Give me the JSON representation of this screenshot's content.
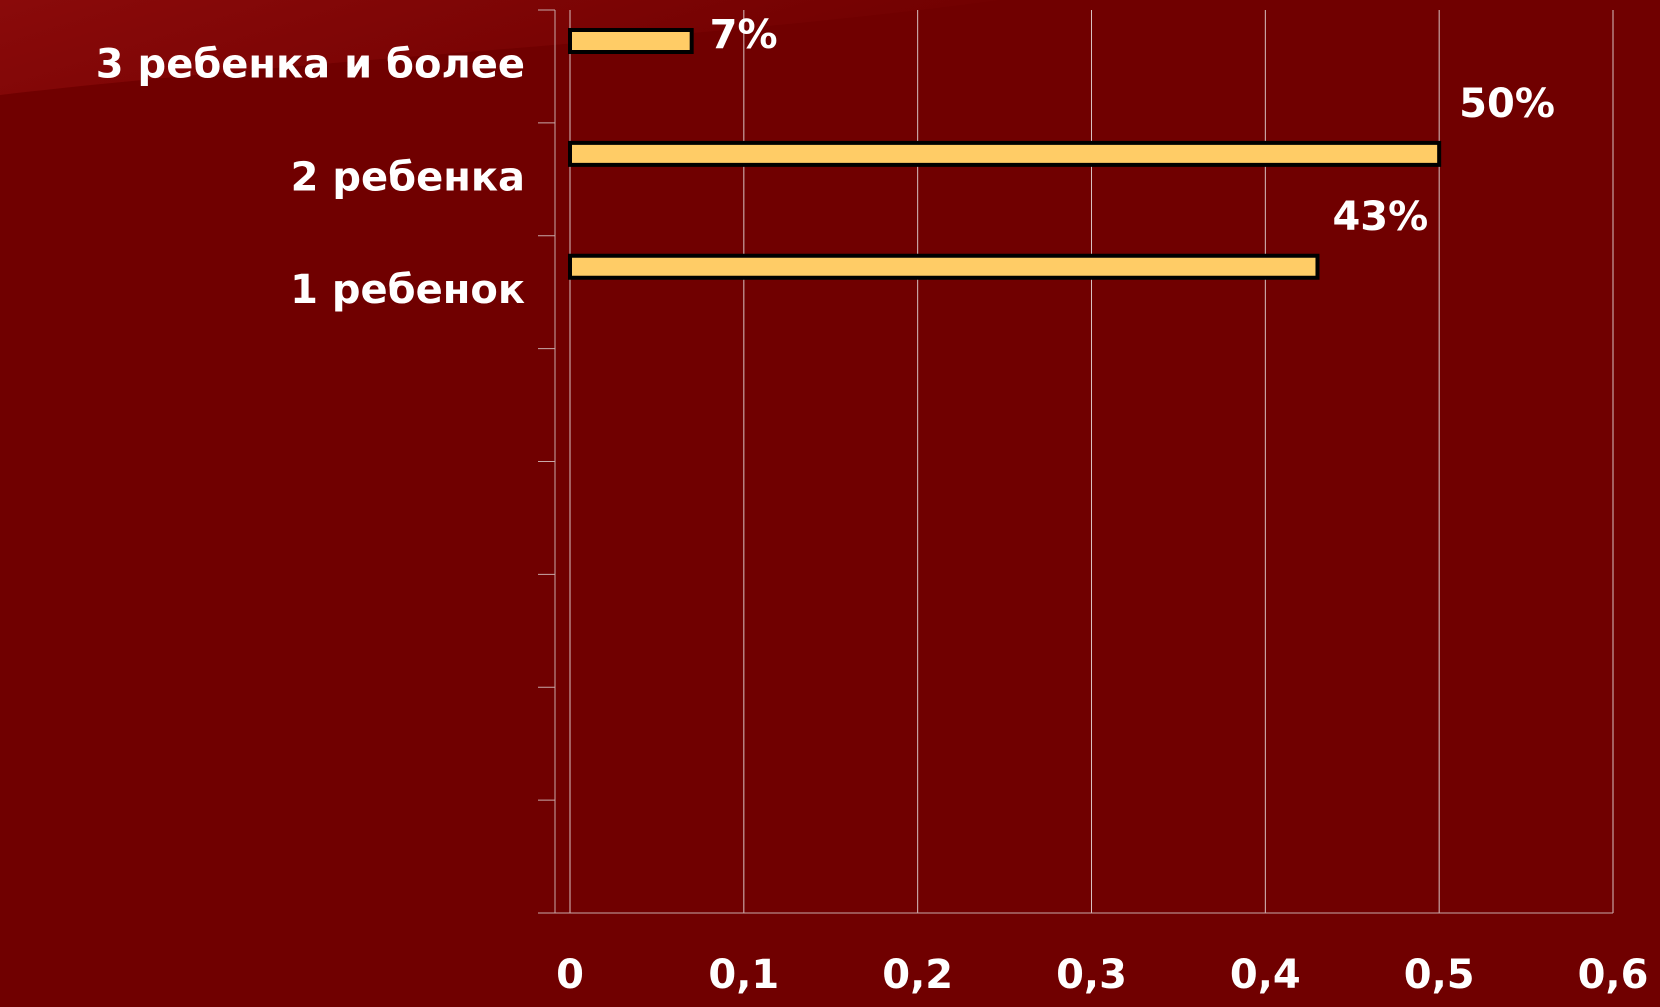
{
  "chart_data": {
    "type": "barh",
    "categories": [
      "3 ребенка и более",
      "2 ребенка",
      "1 ребенок",
      null,
      null,
      null,
      null,
      null
    ],
    "values": [
      0.07,
      0.5,
      0.43,
      null,
      null,
      null,
      null,
      null
    ],
    "value_labels": [
      "7%",
      "50%",
      "43%",
      null,
      null,
      null,
      null,
      null
    ],
    "color": "#ffcc66",
    "xlim": [
      0,
      0.6
    ],
    "xticks": [
      0,
      {
        "value": 0.1,
        "label": "0,1"
      },
      {
        "value": 0.2,
        "label": "0,2"
      },
      {
        "value": 0.3,
        "label": "0,3"
      },
      {
        "value": 0.4,
        "label": "0,4"
      },
      {
        "value": 0.5,
        "label": "0,5"
      },
      {
        "value": 0.6,
        "label": "0,6"
      }
    ],
    "grid": true
  }
}
